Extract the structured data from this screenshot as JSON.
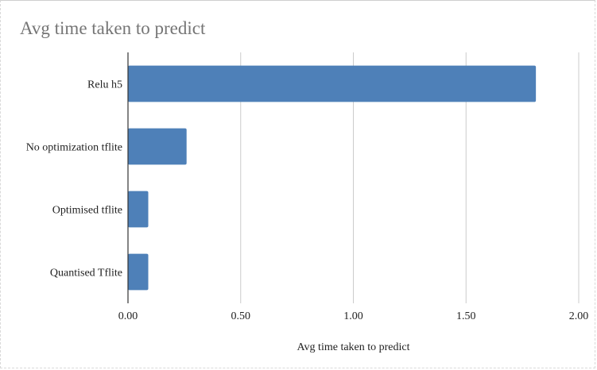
{
  "chart_data": {
    "type": "bar",
    "orientation": "horizontal",
    "title": "Avg time taken to predict",
    "xlabel": "Avg time taken to predict",
    "ylabel": "",
    "categories": [
      "Relu h5",
      "No optimization tflite",
      "Optimised tflite",
      "Quantised Tflite"
    ],
    "values": [
      1.81,
      0.26,
      0.09,
      0.09
    ],
    "xlim": [
      0,
      2.0
    ],
    "xticks": [
      0,
      0.5,
      1.0,
      1.5,
      2.0
    ],
    "xtick_labels": [
      "0.00",
      "0.50",
      "1.00",
      "1.50",
      "2.00"
    ],
    "grid": true,
    "legend": "none",
    "bar_color": "#4e80b8",
    "grid_color": "#cccccc",
    "title_color": "#757575"
  }
}
